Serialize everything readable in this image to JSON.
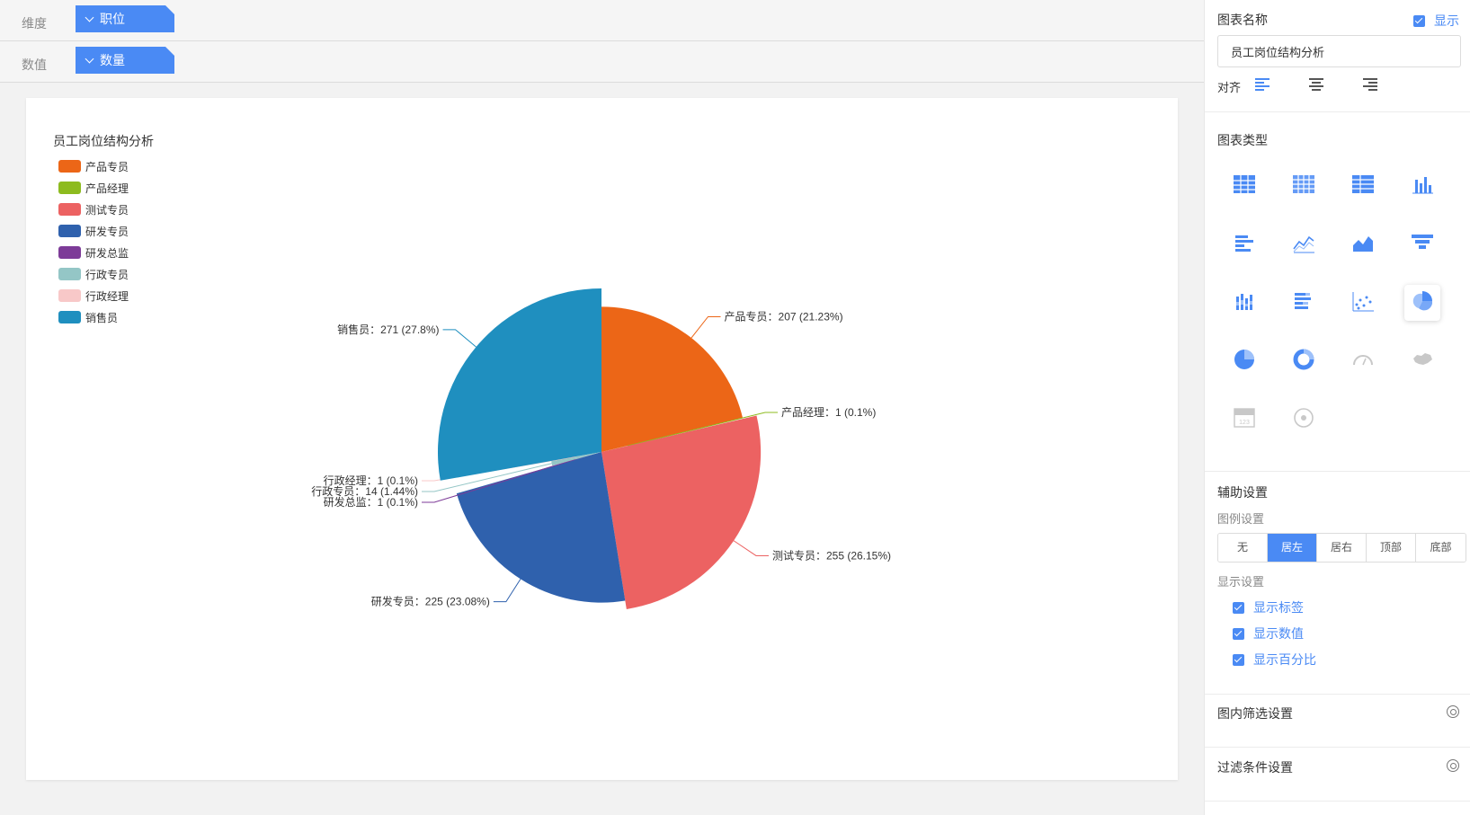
{
  "toolbar": {
    "dimension_label": "维度",
    "dimension_value": "职位",
    "measure_label": "数值",
    "measure_value": "数量"
  },
  "chart_data": {
    "type": "pie",
    "title": "员工岗位结构分析",
    "legend_position": "left",
    "categories": [
      "产品专员",
      "产品经理",
      "测试专员",
      "研发专员",
      "研发总监",
      "行政专员",
      "行政经理",
      "销售员"
    ],
    "values": [
      207,
      1,
      255,
      225,
      1,
      14,
      1,
      271
    ],
    "percents": [
      "21.23%",
      "0.1%",
      "26.15%",
      "23.08%",
      "0.1%",
      "1.44%",
      "0.1%",
      "27.8%"
    ],
    "colors": [
      "#ec6617",
      "#8dbb1f",
      "#ec6262",
      "#2f61ad",
      "#7d3b98",
      "#94c6c6",
      "#f8c8c8",
      "#1f8fbf"
    ],
    "labels": [
      "产品专员：207 (21.23%)",
      "产品经理：1 (0.1%)",
      "测试专员：255 (26.15%)",
      "研发专员：225 (23.08%)",
      "研发总监：1 (0.1%)",
      "行政专员：14 (1.44%)",
      "行政经理：1 (0.1%)",
      "销售员：271 (27.8%)"
    ]
  },
  "panel": {
    "chart_name_label": "图表名称",
    "show_label": "显示",
    "chart_name_value": "员工岗位结构分析",
    "align_label": "对齐",
    "chart_type_label": "图表类型",
    "chart_types": [
      "table",
      "cross-table",
      "grid-table",
      "bar-chart",
      "horizontal-bar",
      "line-chart",
      "area-chart",
      "funnel",
      "stacked-bar",
      "stacked-horizontal-bar",
      "scatter",
      "rose-pie",
      "pie",
      "donut",
      "gauge",
      "map",
      "number-card",
      "word-cloud"
    ],
    "selected_type": "rose-pie",
    "aux_label": "辅助设置",
    "legend_settings_label": "图例设置",
    "legend_options": [
      "无",
      "居左",
      "居右",
      "顶部",
      "底部"
    ],
    "legend_selected": "居左",
    "display_settings_label": "显示设置",
    "display_options": [
      "显示标签",
      "显示数值",
      "显示百分比"
    ],
    "inner_filter_label": "图内筛选设置",
    "filter_cond_label": "过滤条件设置"
  }
}
